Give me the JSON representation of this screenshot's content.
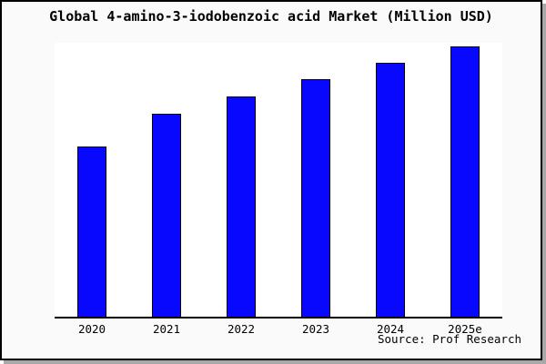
{
  "chart_data": {
    "type": "bar",
    "title": "Global 4-amino-3-iodobenzoic acid Market (Million USD)",
    "source": "Source: Prof Research",
    "categories": [
      "2020",
      "2021",
      "2022",
      "2023",
      "2024",
      "2025e"
    ],
    "values": [
      62.8,
      75.1,
      81.4,
      87.8,
      93.7,
      100
    ],
    "value_note": "No y-axis ticks or gridlines shown; values are relative bar heights normalized to 2025e = 100",
    "ylim": [
      0,
      101.2
    ],
    "xlabel": "",
    "ylabel": "",
    "grid": false,
    "legend": "none",
    "bar_color": "#0808ff",
    "bar_border_color": "#000000",
    "plot_bg": "#ffffff",
    "figure_bg": "#fafafa"
  }
}
